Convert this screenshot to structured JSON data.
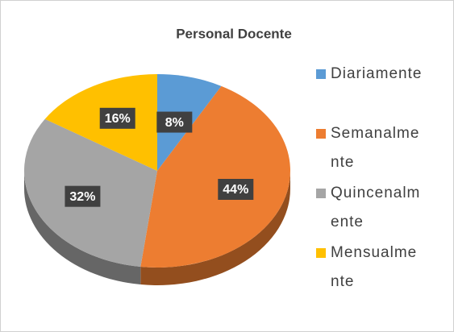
{
  "chart_data": {
    "type": "pie",
    "title": "Personal Docente",
    "categories": [
      "Diariamente",
      "Semanalmente",
      "Quincenalmente",
      "Mensualmente"
    ],
    "values": [
      8,
      44,
      32,
      16
    ],
    "value_labels": [
      "8%",
      "44%",
      "32%",
      "16%"
    ],
    "colors": [
      "#5b9bd5",
      "#ed7d31",
      "#a5a5a5",
      "#ffc000"
    ],
    "legend": "right"
  }
}
